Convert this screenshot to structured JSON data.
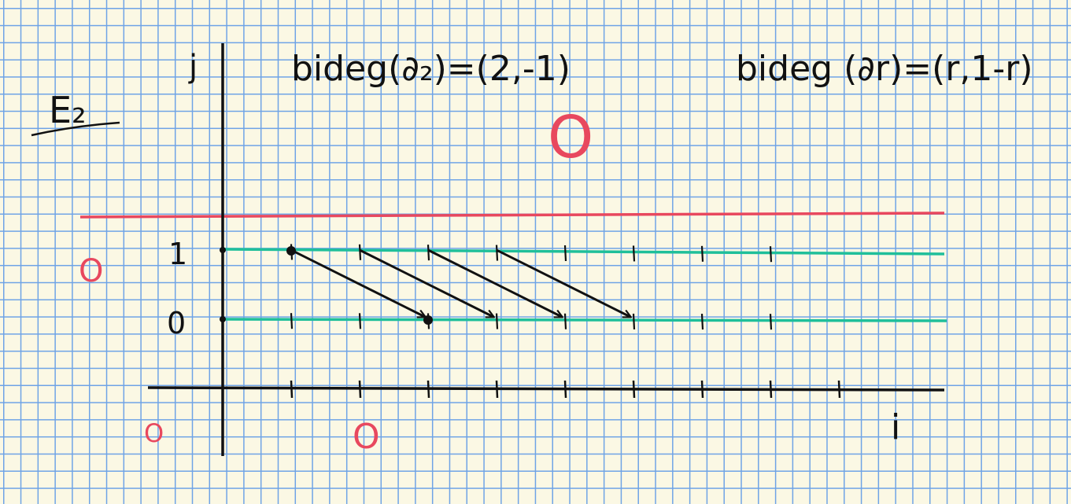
{
  "labels": {
    "page_label": "E₂",
    "j_axis": "j",
    "i_axis": "i",
    "row_one": "1",
    "row_zero": "0",
    "bideg_d2": "bideg(∂₂)=(2,-1)",
    "bideg_dr": "bideg (∂r)=(r,1-r)",
    "zero_big": "O",
    "zero_left": "O",
    "zero_bottom_left": "O",
    "zero_bottom_mid": "O"
  },
  "colors": {
    "ink": "#111111",
    "red": "#e8485e",
    "teal": "#1fbf9a",
    "grid": "#6ea3e6",
    "paper": "#fbf8e4"
  },
  "diagram": {
    "rows_j": [
      0,
      1
    ],
    "columns_i": [
      0,
      1,
      2,
      3,
      4,
      5,
      6,
      7,
      8,
      9
    ],
    "arrows": [
      {
        "from": [
          1,
          1
        ],
        "to": [
          3,
          0
        ]
      },
      {
        "from": [
          2,
          1
        ],
        "to": [
          4,
          0
        ]
      },
      {
        "from": [
          3,
          1
        ],
        "to": [
          5,
          0
        ]
      },
      {
        "from": [
          4,
          1
        ],
        "to": [
          6,
          0
        ]
      }
    ],
    "dots": [
      [
        1,
        1
      ],
      [
        3,
        0
      ]
    ]
  }
}
